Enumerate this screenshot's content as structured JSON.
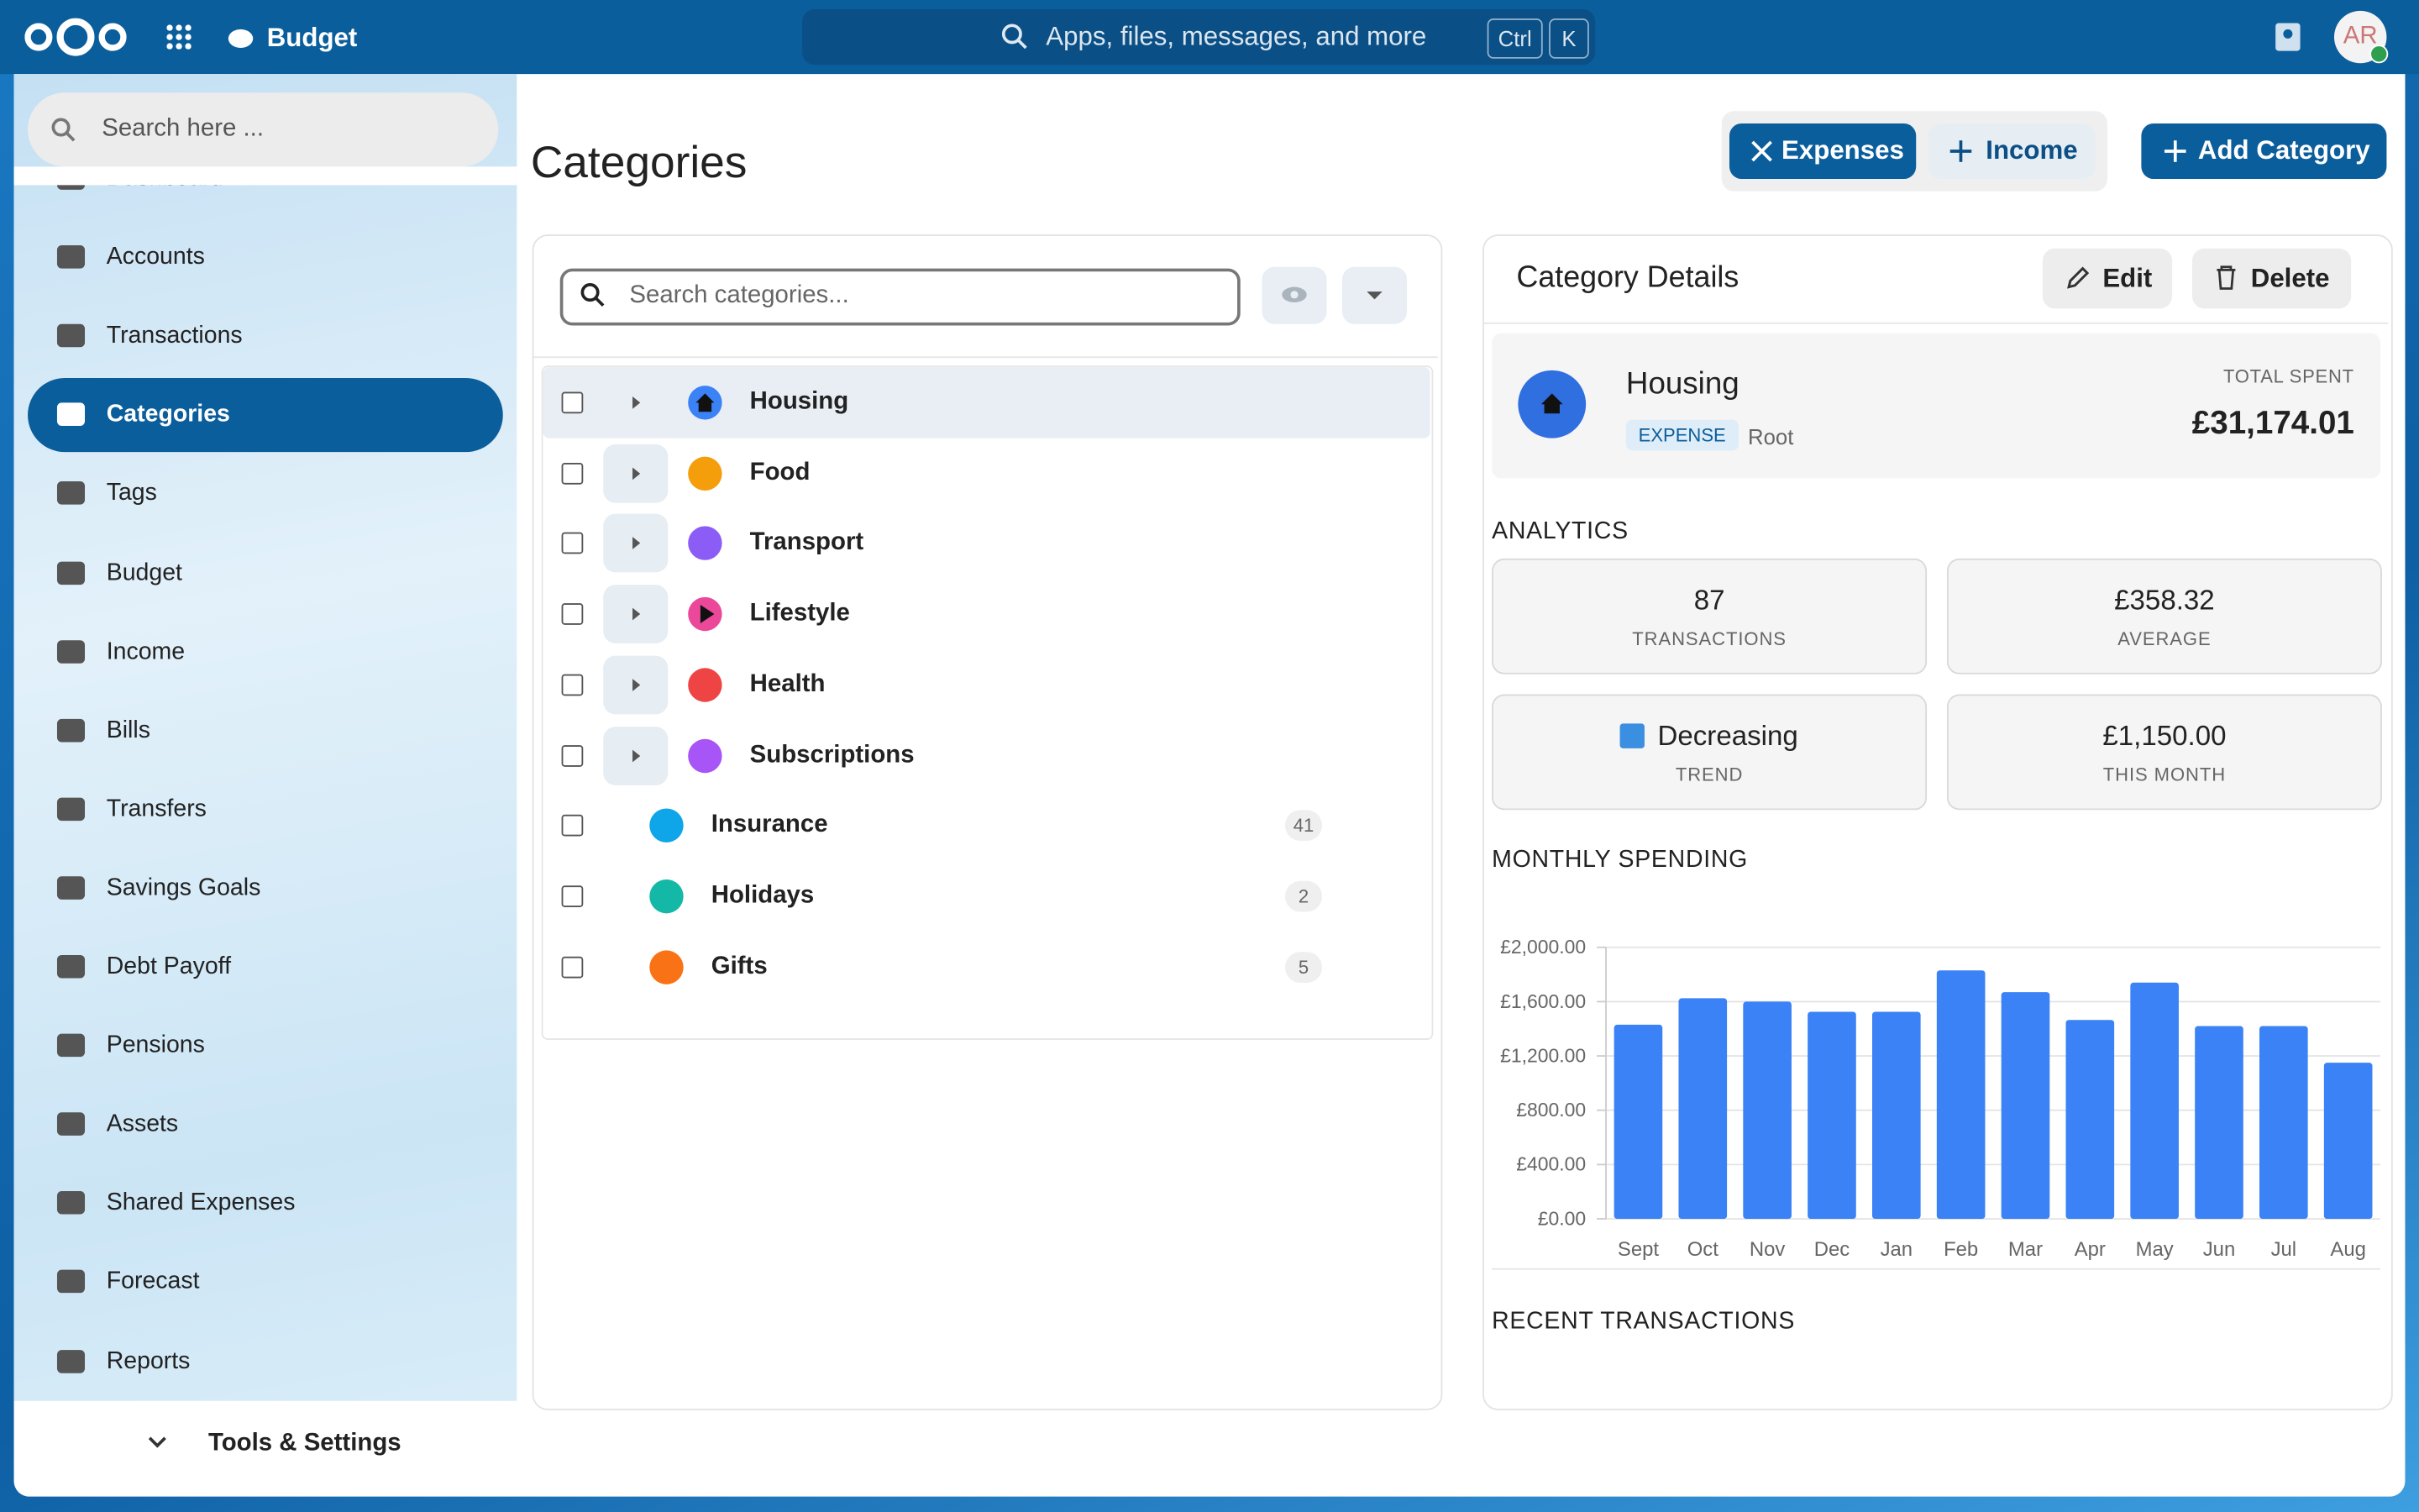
{
  "header": {
    "app_name": "Budget",
    "search_placeholder": "Apps, files, messages, and more",
    "shortcut_keys": [
      "Ctrl",
      "K"
    ],
    "avatar_initials": "AR"
  },
  "sidebar": {
    "search_placeholder": "Search here ...",
    "items": [
      {
        "label": "Dashboard"
      },
      {
        "label": "Accounts"
      },
      {
        "label": "Transactions"
      },
      {
        "label": "Categories",
        "active": true
      },
      {
        "label": "Tags"
      },
      {
        "label": "Budget"
      },
      {
        "label": "Income"
      },
      {
        "label": "Bills"
      },
      {
        "label": "Transfers"
      },
      {
        "label": "Savings Goals"
      },
      {
        "label": "Debt Payoff"
      },
      {
        "label": "Pensions"
      },
      {
        "label": "Assets"
      },
      {
        "label": "Shared Expenses"
      },
      {
        "label": "Forecast"
      },
      {
        "label": "Reports"
      }
    ],
    "footer": "Tools & Settings"
  },
  "page": {
    "title": "Categories",
    "type_filters": [
      "Expenses",
      "Income"
    ],
    "add_button": "Add Category",
    "search_placeholder": "Search categories..."
  },
  "categories": [
    {
      "name": "Housing",
      "color": "#3b82f6",
      "icon": "home",
      "expandable": true,
      "selected": true
    },
    {
      "name": "Food",
      "color": "#f59e0b",
      "expandable": true
    },
    {
      "name": "Transport",
      "color": "#8b5cf6",
      "expandable": true
    },
    {
      "name": "Lifestyle",
      "color": "#ec4899",
      "icon": "play",
      "expandable": true
    },
    {
      "name": "Health",
      "color": "#ef4444",
      "expandable": true
    },
    {
      "name": "Subscriptions",
      "color": "#a855f7",
      "expandable": true
    },
    {
      "name": "Insurance",
      "color": "#0ea5e9",
      "count": "41"
    },
    {
      "name": "Holidays",
      "color": "#14b8a6",
      "count": "2"
    },
    {
      "name": "Gifts",
      "color": "#f97316",
      "count": "5"
    }
  ],
  "details": {
    "title": "Category Details",
    "edit": "Edit",
    "delete": "Delete",
    "name": "Housing",
    "type_badge": "EXPENSE",
    "level": "Root",
    "total_label": "TOTAL SPENT",
    "total_value": "£31,174.01",
    "analytics_title": "ANALYTICS",
    "stats": [
      {
        "value": "87",
        "label": "TRANSACTIONS"
      },
      {
        "value": "£358.32",
        "label": "AVERAGE"
      },
      {
        "value": "Decreasing",
        "label": "TREND"
      },
      {
        "value": "£1,150.00",
        "label": "THIS MONTH"
      }
    ],
    "monthly_title": "MONTHLY SPENDING",
    "recent_title": "RECENT TRANSACTIONS"
  },
  "chart_data": {
    "type": "bar",
    "categories": [
      "Sept",
      "Oct",
      "Nov",
      "Dec",
      "Jan",
      "Feb",
      "Mar",
      "Apr",
      "May",
      "Jun",
      "Jul",
      "Aug"
    ],
    "values": [
      1430,
      1625,
      1600,
      1525,
      1525,
      1830,
      1670,
      1465,
      1740,
      1420,
      1420,
      1150
    ],
    "color": "#3b82f6",
    "ylim": [
      0,
      2000
    ],
    "yticks": [
      {
        "value": 0,
        "label": "£0.00"
      },
      {
        "value": 400,
        "label": "£400.00"
      },
      {
        "value": 800,
        "label": "£800.00"
      },
      {
        "value": 1200,
        "label": "£1,200.00"
      },
      {
        "value": 1600,
        "label": "£1,600.00"
      },
      {
        "value": 2000,
        "label": "£2,000.00"
      }
    ],
    "grid": true
  }
}
